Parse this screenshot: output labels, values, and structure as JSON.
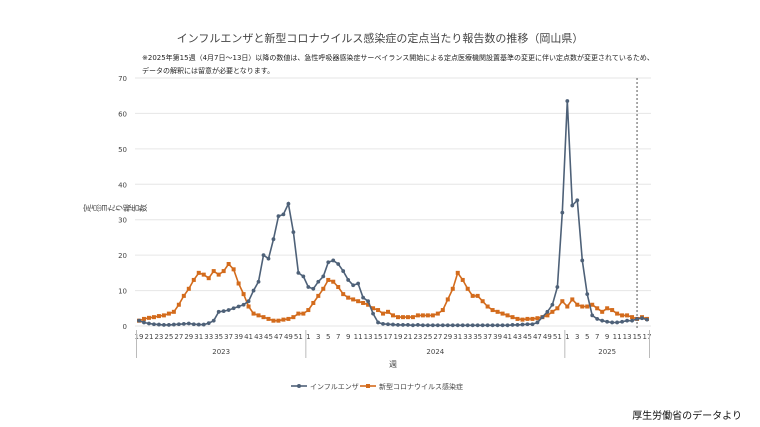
{
  "title": "インフルエンザと新型コロナウイルス感染症の定点当たり報告数の推移（岡山県）",
  "notes": [
    "※2025年第15週（4月7日～13日）以降の数値は、急性呼吸器感染症サーベイランス開始による定点医療機関設置基準の変更に伴い定点数が変更されているため、",
    "データの解釈には留意が必要となります。"
  ],
  "credit": "厚生労働省のデータより",
  "colors": {
    "influenza": "#4e6178",
    "covid": "#d36b1c",
    "grid": "#e6e6e6",
    "marker_line": "#555555"
  },
  "chart_data": {
    "type": "line",
    "ylabel": "定点当たり報告数",
    "xlabel": "週",
    "ylim": [
      0,
      70
    ],
    "yticks": [
      0,
      10,
      20,
      30,
      40,
      50,
      60,
      70
    ],
    "grid": true,
    "legend_position": "bottom",
    "x": [
      "2023-19",
      "2023-20",
      "2023-21",
      "2023-22",
      "2023-23",
      "2023-24",
      "2023-25",
      "2023-26",
      "2023-27",
      "2023-28",
      "2023-29",
      "2023-30",
      "2023-31",
      "2023-32",
      "2023-33",
      "2023-34",
      "2023-35",
      "2023-36",
      "2023-37",
      "2023-38",
      "2023-39",
      "2023-40",
      "2023-41",
      "2023-42",
      "2023-43",
      "2023-44",
      "2023-45",
      "2023-46",
      "2023-47",
      "2023-48",
      "2023-49",
      "2023-50",
      "2023-51",
      "2023-52",
      "2024-1",
      "2024-2",
      "2024-3",
      "2024-4",
      "2024-5",
      "2024-6",
      "2024-7",
      "2024-8",
      "2024-9",
      "2024-10",
      "2024-11",
      "2024-12",
      "2024-13",
      "2024-14",
      "2024-15",
      "2024-16",
      "2024-17",
      "2024-18",
      "2024-19",
      "2024-20",
      "2024-21",
      "2024-22",
      "2024-23",
      "2024-24",
      "2024-25",
      "2024-26",
      "2024-27",
      "2024-28",
      "2024-29",
      "2024-30",
      "2024-31",
      "2024-32",
      "2024-33",
      "2024-34",
      "2024-35",
      "2024-36",
      "2024-37",
      "2024-38",
      "2024-39",
      "2024-40",
      "2024-41",
      "2024-42",
      "2024-43",
      "2024-44",
      "2024-45",
      "2024-46",
      "2024-47",
      "2024-48",
      "2024-49",
      "2024-50",
      "2024-51",
      "2024-52",
      "2025-1",
      "2025-2",
      "2025-3",
      "2025-4",
      "2025-5",
      "2025-6",
      "2025-7",
      "2025-8",
      "2025-9",
      "2025-10",
      "2025-11",
      "2025-12",
      "2025-13",
      "2025-14",
      "2025-15",
      "2025-16",
      "2025-17"
    ],
    "tick_labels": [
      "19",
      "21",
      "23",
      "25",
      "27",
      "29",
      "31",
      "33",
      "35",
      "37",
      "39",
      "41",
      "43",
      "45",
      "47",
      "49",
      "51",
      "1",
      "3",
      "5",
      "7",
      "9",
      "11",
      "13",
      "15",
      "17",
      "19",
      "21",
      "23",
      "25",
      "27",
      "29",
      "31",
      "33",
      "35",
      "37",
      "39",
      "41",
      "43",
      "45",
      "47",
      "49",
      "51",
      "1",
      "3",
      "5",
      "7",
      "9",
      "11",
      "13",
      "15",
      "17"
    ],
    "year_labels": [
      "2023",
      "2024",
      "2025"
    ],
    "reference_line_at": "2025-15",
    "series": [
      {
        "name": "インフルエンザ",
        "marker": "circle",
        "values": [
          1.5,
          1.0,
          0.7,
          0.5,
          0.4,
          0.3,
          0.3,
          0.4,
          0.5,
          0.6,
          0.7,
          0.5,
          0.4,
          0.4,
          0.8,
          1.5,
          4.0,
          4.2,
          4.5,
          5.0,
          5.5,
          6.0,
          7.0,
          10.0,
          12.5,
          20.0,
          19.0,
          24.5,
          31.0,
          31.5,
          34.5,
          26.5,
          15.0,
          14.0,
          11.0,
          10.5,
          12.5,
          14.0,
          18.0,
          18.5,
          17.5,
          15.5,
          13.0,
          11.5,
          12.0,
          8.0,
          7.0,
          3.5,
          1.0,
          0.6,
          0.5,
          0.4,
          0.3,
          0.3,
          0.3,
          0.2,
          0.3,
          0.2,
          0.2,
          0.2,
          0.2,
          0.2,
          0.2,
          0.2,
          0.2,
          0.2,
          0.2,
          0.2,
          0.2,
          0.2,
          0.2,
          0.2,
          0.2,
          0.2,
          0.2,
          0.3,
          0.3,
          0.4,
          0.5,
          0.5,
          1.0,
          2.5,
          4.0,
          6.0,
          11.0,
          32.0,
          63.5,
          34.0,
          35.5,
          18.5,
          9.0,
          3.0,
          2.0,
          1.5,
          1.2,
          1.0,
          1.0,
          1.2,
          1.5,
          1.5,
          2.0,
          2.2,
          1.8
        ]
      },
      {
        "name": "新型コロナウイルス感染症",
        "marker": "square",
        "values": [
          1.5,
          2.0,
          2.3,
          2.5,
          2.8,
          3.0,
          3.5,
          4.0,
          6.0,
          8.5,
          10.5,
          13.0,
          15.0,
          14.5,
          13.5,
          15.5,
          14.5,
          15.5,
          17.5,
          16.0,
          12.0,
          9.0,
          5.5,
          3.5,
          3.0,
          2.5,
          2.0,
          1.5,
          1.5,
          1.8,
          2.0,
          2.5,
          3.5,
          3.5,
          4.5,
          6.5,
          8.5,
          10.5,
          13.0,
          12.5,
          11.0,
          9.0,
          8.0,
          7.5,
          7.0,
          6.5,
          6.0,
          5.0,
          4.5,
          3.5,
          4.0,
          3.0,
          2.5,
          2.5,
          2.5,
          2.5,
          3.0,
          3.0,
          3.0,
          3.0,
          3.5,
          4.5,
          7.5,
          10.5,
          15.0,
          13.0,
          10.5,
          8.5,
          8.5,
          7.0,
          5.5,
          4.5,
          4.0,
          3.5,
          3.0,
          2.5,
          2.0,
          1.8,
          2.0,
          2.0,
          2.2,
          2.5,
          3.0,
          4.0,
          5.0,
          7.0,
          5.5,
          7.5,
          6.0,
          5.5,
          5.5,
          6.0,
          5.0,
          4.0,
          5.0,
          4.5,
          3.5,
          3.0,
          3.0,
          2.5,
          2.0,
          2.5,
          2.0
        ]
      }
    ]
  }
}
